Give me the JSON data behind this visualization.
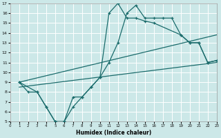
{
  "xlabel": "Humidex (Indice chaleur)",
  "background_color": "#cce8e8",
  "grid_color": "#ffffff",
  "line_color": "#1a6b6b",
  "xlim": [
    0,
    23
  ],
  "ylim": [
    5,
    17
  ],
  "xticks": [
    0,
    1,
    2,
    3,
    4,
    5,
    6,
    7,
    8,
    9,
    10,
    11,
    12,
    13,
    14,
    15,
    16,
    17,
    18,
    19,
    20,
    21,
    22,
    23
  ],
  "yticks": [
    5,
    6,
    7,
    8,
    9,
    10,
    11,
    12,
    13,
    14,
    15,
    16,
    17
  ],
  "curve1_x": [
    1,
    2,
    3,
    4,
    5,
    6,
    7,
    8,
    9,
    10,
    11,
    12,
    13,
    14,
    15,
    16,
    17,
    18,
    19,
    20,
    21,
    22,
    23
  ],
  "curve1_y": [
    9,
    8,
    8,
    6.5,
    5,
    5,
    6.5,
    7.5,
    8.5,
    9.5,
    11,
    13,
    16,
    16.8,
    15.5,
    15.5,
    15.5,
    15.5,
    13.8,
    13,
    13,
    11,
    11.2
  ],
  "curve2_x": [
    1,
    3,
    4,
    5,
    6,
    7,
    8,
    9,
    10,
    11,
    12,
    13,
    14,
    15,
    16,
    19,
    20,
    21,
    22,
    23
  ],
  "curve2_y": [
    9,
    8,
    6.5,
    5,
    5,
    7.5,
    7.5,
    8.5,
    9.5,
    16,
    17,
    15.5,
    15.5,
    15.2,
    15,
    13.8,
    13,
    13,
    11,
    11.2
  ],
  "line3_x": [
    1,
    23
  ],
  "line3_y": [
    8.5,
    11
  ],
  "line4_x": [
    1,
    23
  ],
  "line4_y": [
    9,
    13.8
  ]
}
